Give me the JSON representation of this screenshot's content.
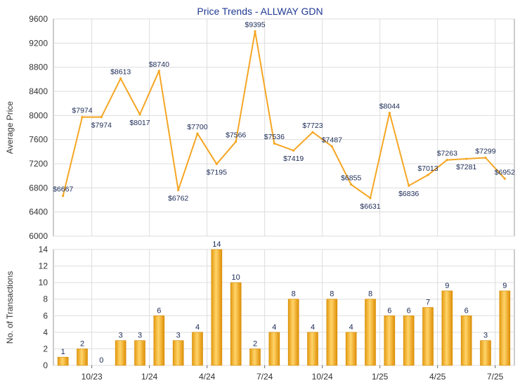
{
  "chart_data": [
    {
      "type": "line",
      "title": "Price Trends - ALLWAY GDN",
      "ylabel": "Average Price",
      "xlabel": "",
      "ylim": [
        6000,
        9600
      ],
      "yticks": [
        6000,
        6400,
        6800,
        7200,
        7600,
        8000,
        8400,
        8800,
        9200,
        9600
      ],
      "grid": true,
      "color": "#f5a623",
      "values": [
        6667,
        7974,
        7974,
        8613,
        8017,
        8740,
        6762,
        7700,
        7195,
        7566,
        9395,
        7536,
        7419,
        7723,
        7487,
        6855,
        6631,
        8044,
        6836,
        7013,
        7263,
        7281,
        7299,
        6952
      ],
      "labels": [
        "$6667",
        "$7974",
        "$7974",
        "$8613",
        "$8017",
        "$8740",
        "$6762",
        "$7700",
        "$7195",
        "$7566",
        "$9395",
        "$7536",
        "$7419",
        "$7723",
        "$7487",
        "$6855",
        "$6631",
        "$8044",
        "$6836",
        "$7013",
        "$7263",
        "$7281",
        "$7299",
        "$6952"
      ]
    },
    {
      "type": "bar",
      "ylabel": "No. of Transactions",
      "xlabel": "",
      "ylim": [
        0,
        14
      ],
      "yticks": [
        0,
        2,
        4,
        6,
        8,
        10,
        12,
        14
      ],
      "grid": true,
      "color": "#f5a623",
      "values": [
        1,
        2,
        0,
        3,
        3,
        6,
        3,
        4,
        14,
        10,
        2,
        4,
        8,
        4,
        8,
        4,
        8,
        6,
        6,
        7,
        9,
        6,
        3,
        9
      ],
      "xtick_labels": [
        "10/23",
        "1/24",
        "4/24",
        "7/24",
        "10/24",
        "1/25",
        "4/25",
        "7/25"
      ]
    }
  ]
}
